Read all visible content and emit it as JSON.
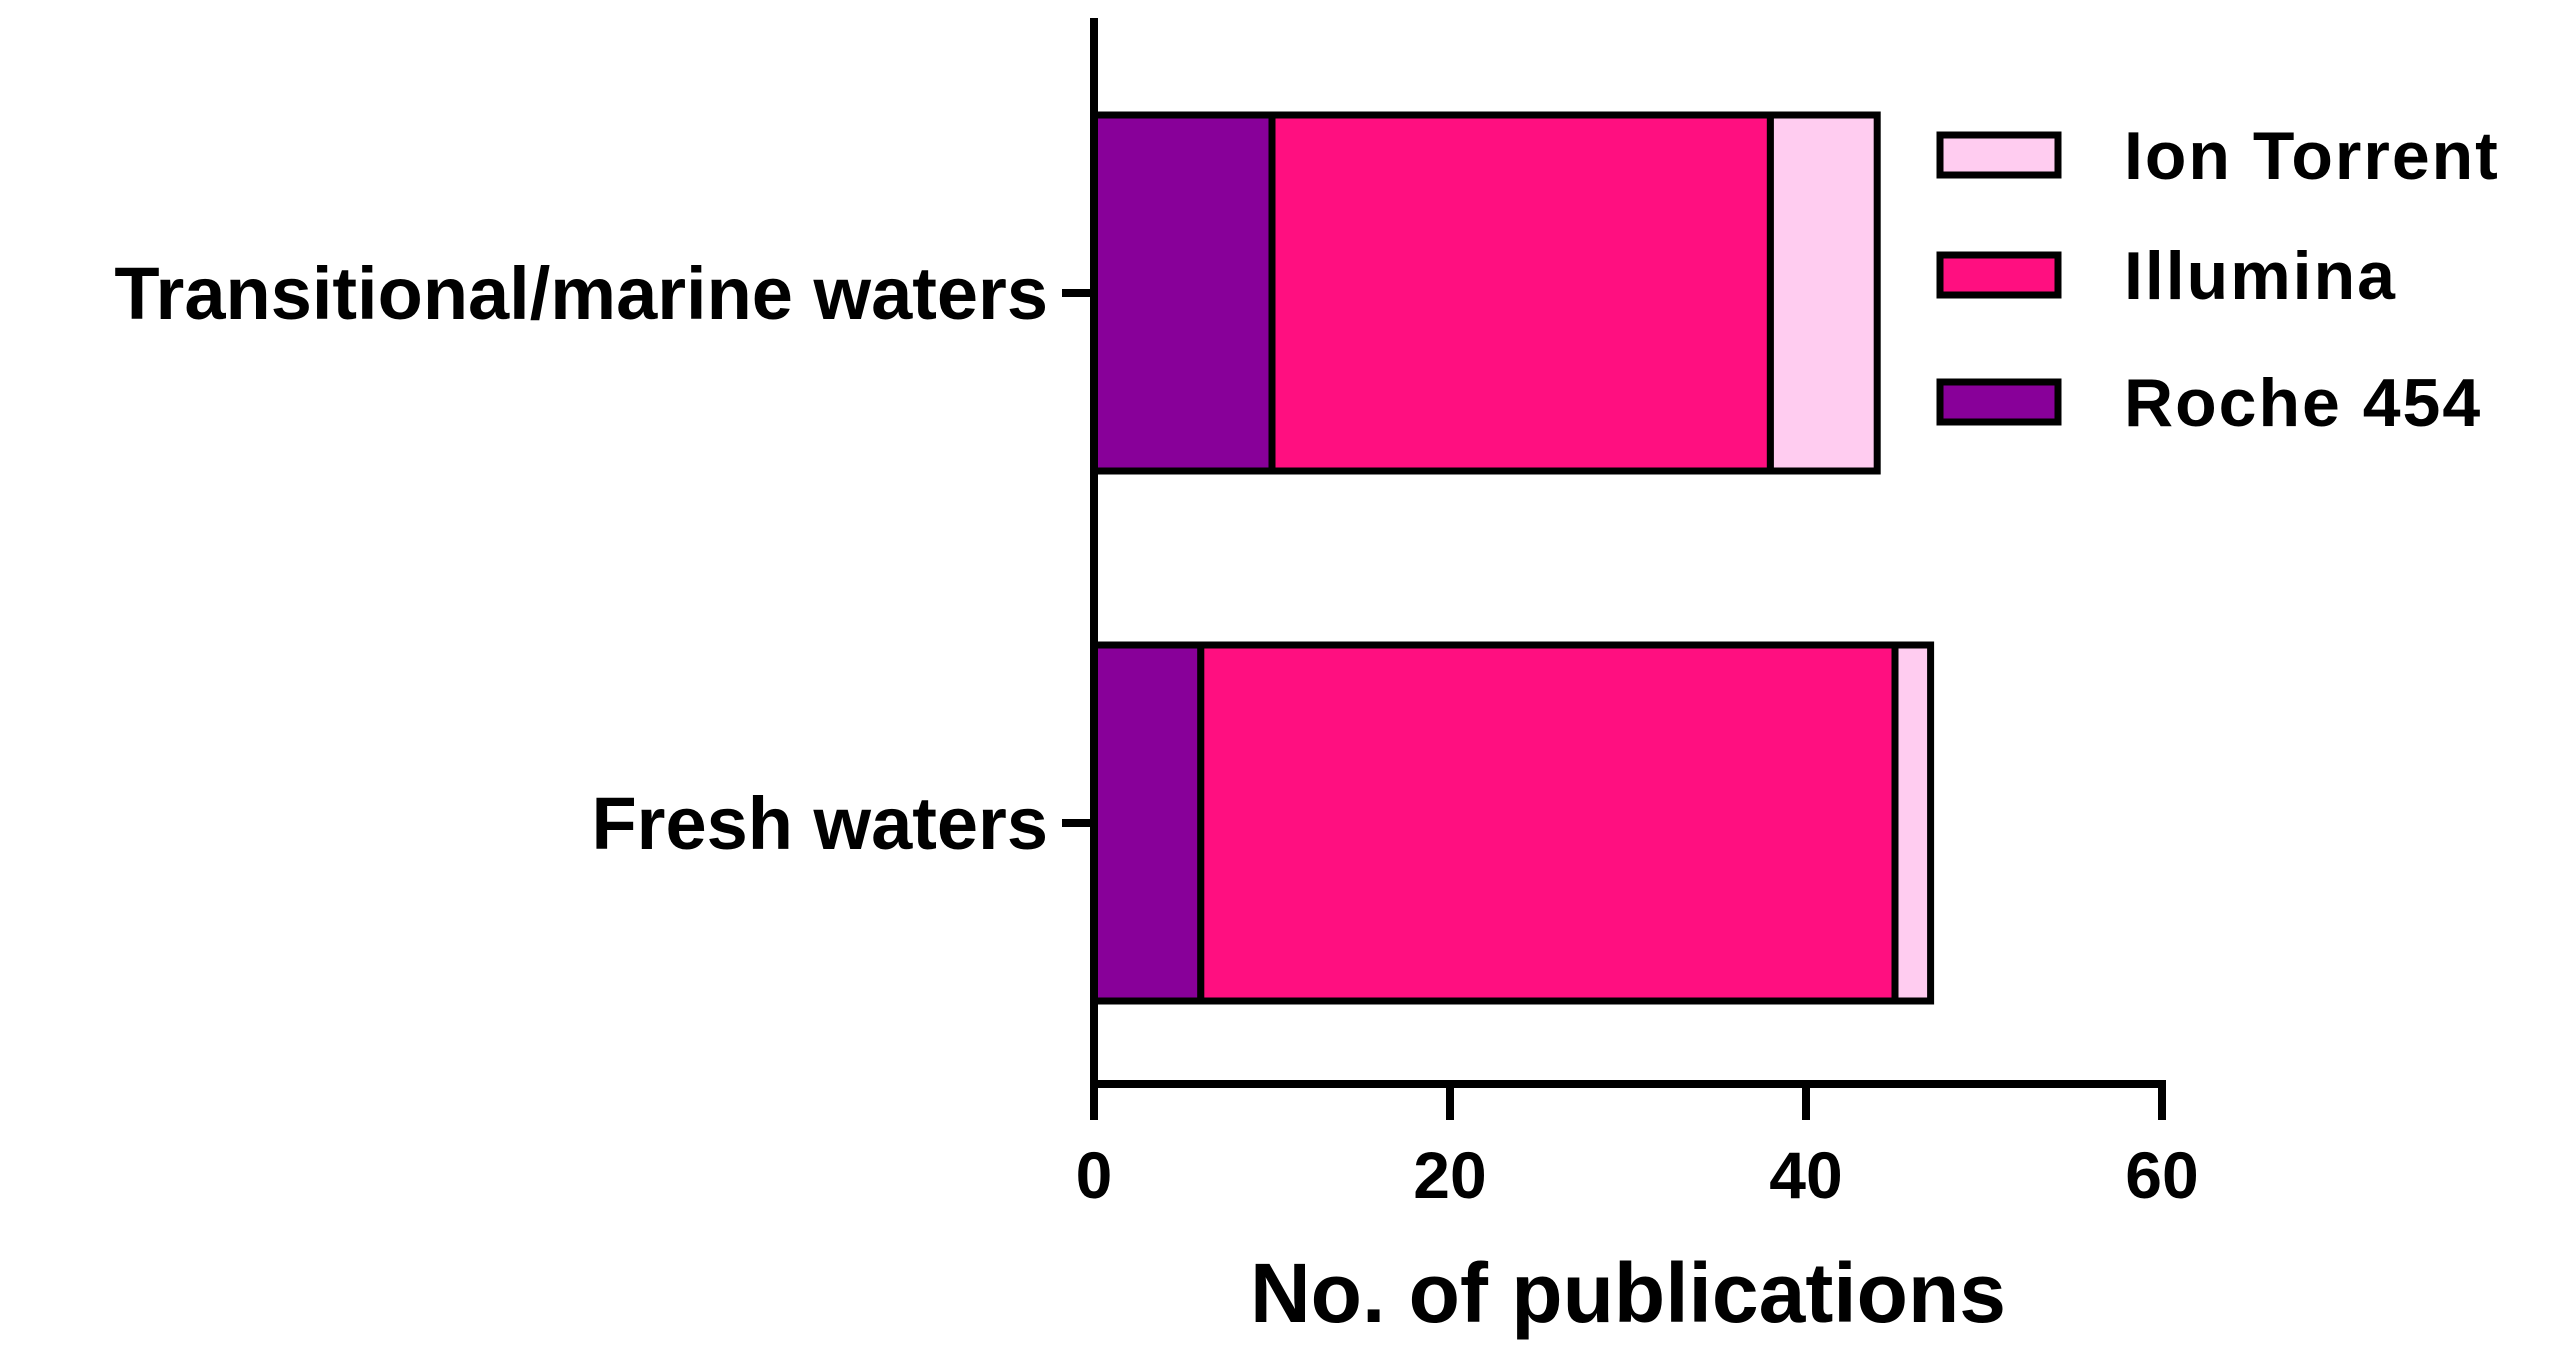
{
  "chart_data": {
    "type": "bar",
    "orientation": "horizontal",
    "stacked": true,
    "categories": [
      "Transitional/marine waters",
      "Fresh waters"
    ],
    "series": [
      {
        "name": "Roche 454",
        "values": [
          10,
          6
        ],
        "color": "#880099"
      },
      {
        "name": "Illumina",
        "values": [
          28,
          39
        ],
        "color": "#FF0F80"
      },
      {
        "name": "Ion Torrent",
        "values": [
          6,
          2
        ],
        "color": "#FFCCF0"
      }
    ],
    "legend_order": [
      "Ion Torrent",
      "Illumina",
      "Roche 454"
    ],
    "title": "",
    "xlabel": "No. of publications",
    "ylabel": "",
    "xlim": [
      0,
      60
    ],
    "xticks": [
      0,
      20,
      40,
      60
    ],
    "grid": false,
    "legend_position": "top-right"
  }
}
